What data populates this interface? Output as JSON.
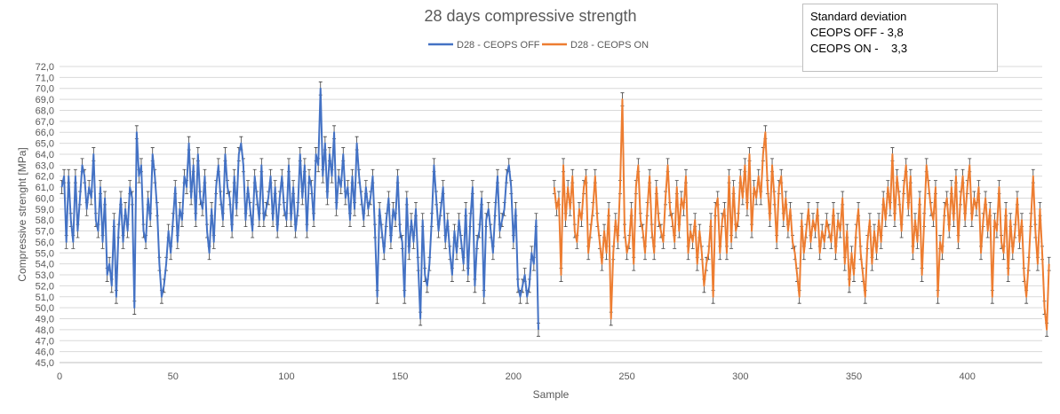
{
  "stats": {
    "line1": "Standard deviation",
    "line2": "CEOPS OFF - 3,8",
    "line3": "CEOPS ON -    3,3"
  },
  "chart_data": {
    "type": "line",
    "title": "28 days compressive strength",
    "xlabel": "Sample",
    "ylabel": "Compressive strenght [MPa]",
    "xlim": [
      0,
      433
    ],
    "ylim": [
      45,
      72
    ],
    "x_ticks": [
      0,
      50,
      100,
      150,
      200,
      250,
      300,
      350,
      400
    ],
    "y_ticks": [
      45,
      46,
      47,
      48,
      49,
      50,
      51,
      52,
      53,
      54,
      55,
      56,
      57,
      58,
      59,
      60,
      61,
      62,
      63,
      64,
      65,
      66,
      67,
      68,
      69,
      70,
      71,
      72
    ],
    "y_tick_labels": [
      "45,0",
      "46,0",
      "47,0",
      "48,0",
      "49,0",
      "50,0",
      "51,0",
      "52,0",
      "53,0",
      "54,0",
      "55,0",
      "56,0",
      "57,0",
      "58,0",
      "59,0",
      "60,0",
      "61,0",
      "62,0",
      "63,0",
      "64,0",
      "65,0",
      "66,0",
      "67,0",
      "68,0",
      "69,0",
      "70,0",
      "71,0",
      "72,0"
    ],
    "grid": true,
    "legend_position": "top-center",
    "error_bar": 0.6,
    "series": [
      {
        "name": "D28 - CEOPS OFF",
        "color": "#4472c4",
        "x_start": 1,
        "values": [
          61,
          62,
          56,
          62,
          58,
          56,
          62,
          57,
          60,
          63,
          62,
          59,
          61,
          60,
          64,
          58,
          57,
          61,
          56,
          60,
          53,
          54,
          52,
          58,
          51,
          57,
          60,
          56,
          59,
          57,
          61,
          60,
          50,
          66,
          62,
          63,
          57,
          56,
          60,
          58,
          64,
          62,
          59,
          54,
          51,
          52,
          54,
          57,
          55,
          58,
          61,
          56,
          59,
          58,
          62,
          61,
          65,
          60,
          63,
          58,
          64,
          60,
          59,
          62,
          57,
          55,
          59,
          56,
          61,
          63,
          60,
          58,
          64,
          61,
          60,
          57,
          62,
          59,
          64,
          65,
          63,
          58,
          61,
          59,
          57,
          62,
          60,
          58,
          63,
          58,
          59,
          60,
          62,
          58,
          61,
          57,
          60,
          62,
          59,
          58,
          63,
          58,
          61,
          57,
          59,
          64,
          60,
          63,
          57,
          62,
          61,
          58,
          64,
          63,
          70,
          62,
          65,
          60,
          64,
          62,
          66,
          59,
          62,
          61,
          64,
          60,
          61,
          58,
          62,
          59,
          65,
          62,
          60,
          58,
          61,
          59,
          60,
          62,
          57,
          51,
          59,
          57,
          55,
          58,
          60,
          56,
          59,
          58,
          62,
          57,
          56,
          51,
          60,
          55,
          58,
          56,
          59,
          54,
          49,
          58,
          53,
          52,
          54,
          58,
          63,
          60,
          57,
          59,
          61,
          56,
          58,
          55,
          53,
          57,
          55,
          58,
          56,
          54,
          59,
          53,
          58,
          61,
          52,
          56,
          57,
          60,
          51,
          58,
          59,
          57,
          55,
          59,
          62,
          57,
          58,
          59,
          62,
          63,
          61,
          56,
          59,
          52,
          51,
          52,
          53,
          51,
          52,
          55,
          54,
          58,
          48
        ]
      },
      {
        "name": "D28 - CEOPS ON",
        "color": "#ed7d31",
        "x_start": 218,
        "values": [
          61,
          59,
          60,
          53,
          63,
          58,
          61,
          59,
          62,
          57,
          56,
          59,
          58,
          61,
          62,
          55,
          57,
          59,
          62,
          58,
          56,
          54,
          57,
          55,
          59,
          49,
          55,
          58,
          56,
          61,
          69,
          57,
          55,
          56,
          59,
          54,
          61,
          63,
          58,
          57,
          55,
          59,
          62,
          57,
          55,
          61,
          58,
          57,
          56,
          60,
          63,
          59,
          58,
          56,
          61,
          57,
          60,
          59,
          62,
          55,
          57,
          56,
          58,
          54,
          57,
          55,
          52,
          54,
          55,
          58,
          51,
          59,
          60,
          55,
          58,
          59,
          55,
          62,
          56,
          61,
          57,
          58,
          62,
          60,
          63,
          59,
          64,
          57,
          61,
          60,
          62,
          60,
          64,
          66,
          61,
          58,
          63,
          60,
          56,
          61,
          62,
          58,
          60,
          57,
          59,
          56,
          55,
          53,
          51,
          58,
          55,
          57,
          59,
          56,
          58,
          57,
          59,
          55,
          57,
          56,
          58,
          57,
          56,
          59,
          55,
          58,
          57,
          60,
          54,
          57,
          52,
          55,
          53,
          57,
          59,
          55,
          53,
          51,
          56,
          58,
          54,
          57,
          55,
          58,
          56,
          60,
          58,
          61,
          59,
          64,
          58,
          62,
          60,
          57,
          61,
          63,
          59,
          62,
          55,
          58,
          56,
          60,
          53,
          58,
          63,
          61,
          59,
          58,
          61,
          51,
          56,
          55,
          59,
          60,
          57,
          61,
          58,
          62,
          56,
          60,
          62,
          58,
          61,
          63,
          58,
          60,
          59,
          61,
          55,
          58,
          60,
          57,
          59,
          51,
          58,
          57,
          61,
          56,
          55,
          59,
          53,
          58,
          55,
          57,
          60,
          56,
          58,
          53,
          51,
          54,
          58,
          62,
          57,
          54,
          59,
          55,
          50,
          48,
          54
        ]
      }
    ]
  }
}
